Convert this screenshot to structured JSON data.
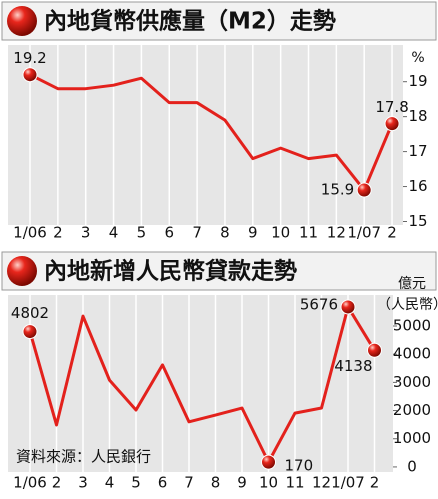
{
  "chart_data": [
    {
      "type": "line",
      "title": "內地貨幣供應量（M2）走勢",
      "categories": [
        "1/06",
        "2",
        "3",
        "4",
        "5",
        "6",
        "7",
        "8",
        "9",
        "10",
        "11",
        "12",
        "1/07",
        "2"
      ],
      "values": [
        19.2,
        18.8,
        18.8,
        18.9,
        19.1,
        18.4,
        18.4,
        17.9,
        16.8,
        17.1,
        16.8,
        16.9,
        15.9,
        17.8
      ],
      "value_labels": [
        "19.2",
        null,
        null,
        null,
        null,
        null,
        null,
        null,
        null,
        null,
        null,
        null,
        "15.9",
        "17.8"
      ],
      "color": "#e3211c",
      "ylim": [
        14.9,
        20.05
      ],
      "yticks": [
        15,
        16,
        17,
        18,
        19
      ],
      "ylabel": [
        "%"
      ],
      "grid": "x"
    },
    {
      "type": "line",
      "title": "內地新增人民幣貸款走勢",
      "categories": [
        "1/06",
        "2",
        "3",
        "4",
        "5",
        "6",
        "7",
        "8",
        "9",
        "10",
        "11",
        "12",
        "1/07",
        "2"
      ],
      "values": [
        4802,
        1490,
        5350,
        3080,
        2020,
        3620,
        1600,
        1840,
        2090,
        170,
        1910,
        2090,
        5676,
        4138
      ],
      "value_labels": [
        "4802",
        null,
        null,
        null,
        null,
        null,
        null,
        null,
        null,
        "170",
        null,
        null,
        "5676",
        "4138"
      ],
      "color": "#e3211c",
      "ylim": [
        -180,
        6100
      ],
      "yticks": [
        0,
        1000,
        2000,
        3000,
        4000,
        5000
      ],
      "ylabel": [
        "億元",
        "（人民幣）"
      ],
      "grid": "x",
      "source": "資料來源：人民銀行"
    }
  ]
}
